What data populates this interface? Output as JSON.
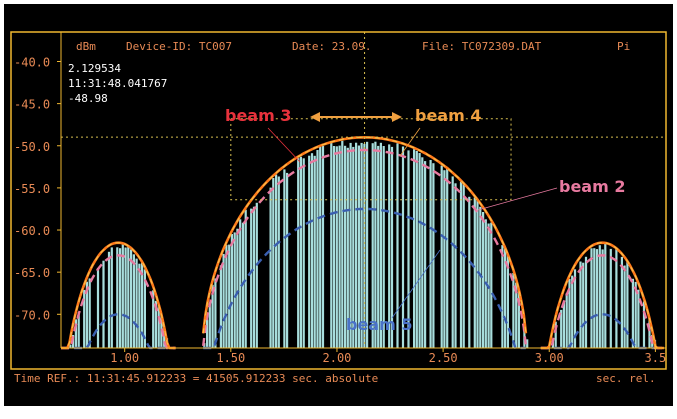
{
  "header": {
    "unit": "dBm",
    "device": "Device-ID: TC007",
    "date": "Date: 23.09.",
    "file": "File: TC072309.DAT",
    "extra": "Pi"
  },
  "cursor_readout": {
    "x_value": "2.129534",
    "time": "11:31:48.041767",
    "y_value": "-48.98"
  },
  "footer": {
    "time_ref": "Time REF.: 11:31:45.912233 = 41505.912233 sec. absolute",
    "unit": "sec. rel."
  },
  "annotations": {
    "beam3": "beam 3",
    "beam4": "beam 4",
    "beam2": "beam 2",
    "beam5": "beam 5"
  },
  "colors": {
    "background": "#000000",
    "frame": "#f0b830",
    "text": "#e88a55",
    "readout": "#ffffff",
    "bars": "#a8dedd",
    "beam_measured": "#ff7a1a",
    "beam2": "#e87aa0",
    "beam5": "#3a5fb0",
    "beam3_label": "#e8323c",
    "beam4_label": "#f0a040",
    "beam5_label": "#4a72c8"
  },
  "chart_data": {
    "type": "line",
    "title": "",
    "xlabel": "",
    "ylabel": "dBm",
    "xlim": [
      0.7,
      3.55
    ],
    "ylim": [
      -74,
      -36.5
    ],
    "x_ticks": [
      1.0,
      1.5,
      2.0,
      2.5,
      3.0,
      3.5
    ],
    "x_tick_labels": [
      "1.00",
      "1.50",
      "2.00",
      "2.50",
      "3.00",
      "3.5"
    ],
    "y_ticks": [
      -40,
      -45,
      -50,
      -55,
      -60,
      -65,
      -70
    ],
    "y_tick_labels": [
      "-40.0",
      "-45.0",
      "-50.0",
      "-55.0",
      "-60.0",
      "-65.0",
      "-70.0"
    ],
    "grid": false,
    "cursor": {
      "x": 2.13,
      "y": -48.98
    },
    "zoom_box": {
      "x": [
        1.5,
        2.82
      ],
      "y": [
        -56.4,
        -46.8
      ]
    },
    "lobes": [
      {
        "x_start": 0.7,
        "x_end": 1.25,
        "peak_x": 0.97,
        "peak_y": -61.5
      },
      {
        "x_start": 1.37,
        "x_end": 2.9,
        "peak_x": 2.13,
        "peak_y": -49.0
      },
      {
        "x_start": 2.96,
        "x_end": 3.55,
        "peak_x": 3.25,
        "peak_y": -61.5
      }
    ],
    "series": [
      {
        "name": "beam 3",
        "kind": "measured",
        "offset_db": 0
      },
      {
        "name": "beam 4",
        "kind": "measured",
        "offset_db": 0
      },
      {
        "name": "beam 2",
        "kind": "model",
        "offset_db": -1.5
      },
      {
        "name": "beam 5",
        "kind": "model",
        "offset_db": -8.5
      }
    ]
  }
}
